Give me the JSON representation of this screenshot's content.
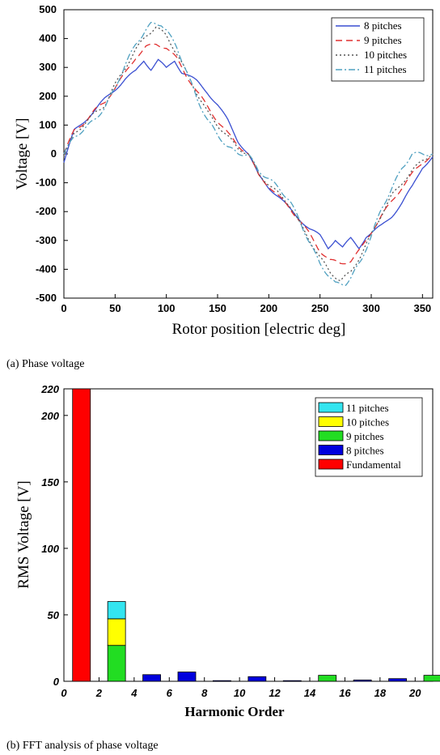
{
  "captions": {
    "a": "(a)  Phase  voltage",
    "b": "(b)  FFT  analysis  of  phase  voltage"
  },
  "chart_data": [
    {
      "type": "line",
      "xlabel": "Rotor position [electric deg]",
      "ylabel": "Voltage [V]",
      "xlim": [
        0,
        360
      ],
      "ylim": [
        -500,
        500
      ],
      "xticks": [
        "0",
        "50",
        "100",
        "150",
        "200",
        "250",
        "300",
        "350"
      ],
      "yticks": [
        "500",
        "400",
        "300",
        "200",
        "100",
        "0",
        "-100",
        "-200",
        "-300",
        "-400",
        "-500"
      ],
      "grid": false,
      "legend_position": "top-right",
      "series": [
        {
          "name": "8 pitches",
          "color": "#3a4fd1",
          "dash": "solid",
          "peak": 330,
          "x": [
            0,
            10,
            20,
            30,
            40,
            50,
            60,
            70,
            78,
            85,
            92,
            100,
            108,
            115,
            120,
            130,
            140,
            150,
            160,
            170,
            180,
            190,
            200,
            210,
            220,
            230,
            240,
            250,
            258,
            265,
            272,
            280,
            288,
            295,
            300,
            310,
            320,
            330,
            340,
            350,
            360
          ],
          "y": [
            -30,
            80,
            115,
            150,
            190,
            225,
            260,
            285,
            325,
            295,
            325,
            295,
            325,
            285,
            275,
            250,
            215,
            170,
            115,
            45,
            0,
            -75,
            -115,
            -150,
            -190,
            -225,
            -260,
            -285,
            -325,
            -295,
            -325,
            -295,
            -325,
            -285,
            -275,
            -250,
            -215,
            -170,
            -115,
            -45,
            -10
          ]
        },
        {
          "name": "9 pitches",
          "color": "#e03030",
          "dash": "8,5",
          "peak": 380,
          "x": [
            0,
            10,
            20,
            30,
            40,
            50,
            60,
            70,
            80,
            90,
            100,
            110,
            120,
            130,
            140,
            150,
            160,
            170,
            180,
            190,
            200,
            210,
            220,
            230,
            240,
            250,
            260,
            270,
            280,
            290,
            300,
            310,
            320,
            330,
            340,
            350,
            360
          ],
          "y": [
            0,
            80,
            110,
            150,
            180,
            230,
            280,
            335,
            370,
            380,
            370,
            330,
            270,
            215,
            165,
            115,
            70,
            30,
            0,
            -75,
            -110,
            -150,
            -185,
            -230,
            -280,
            -335,
            -370,
            -380,
            -370,
            -330,
            -270,
            -215,
            -165,
            -115,
            -70,
            -30,
            0
          ]
        },
        {
          "name": "10 pitches",
          "color": "#555555",
          "dash": "2,3",
          "peak": 440,
          "x": [
            0,
            10,
            20,
            30,
            40,
            50,
            60,
            70,
            80,
            90,
            100,
            110,
            120,
            130,
            140,
            150,
            160,
            170,
            180,
            190,
            200,
            210,
            220,
            230,
            240,
            250,
            260,
            270,
            280,
            290,
            300,
            310,
            320,
            330,
            340,
            350,
            360
          ],
          "y": [
            -10,
            70,
            105,
            140,
            170,
            240,
            300,
            360,
            410,
            440,
            410,
            350,
            280,
            210,
            145,
            100,
            60,
            20,
            0,
            -70,
            -105,
            -140,
            -175,
            -240,
            -300,
            -360,
            -410,
            -440,
            -410,
            -350,
            -280,
            -210,
            -145,
            -100,
            -60,
            -20,
            0
          ]
        },
        {
          "name": "11 pitches",
          "color": "#4fa0c0",
          "dash": "8,3,2,3",
          "peak": 460,
          "x": [
            0,
            10,
            20,
            30,
            40,
            50,
            60,
            70,
            80,
            85,
            95,
            100,
            110,
            120,
            130,
            140,
            150,
            160,
            170,
            180,
            190,
            200,
            210,
            220,
            230,
            240,
            250,
            260,
            265,
            275,
            280,
            290,
            300,
            310,
            320,
            330,
            340,
            350,
            360
          ],
          "y": [
            0,
            60,
            85,
            120,
            160,
            230,
            310,
            380,
            430,
            450,
            450,
            430,
            370,
            285,
            190,
            120,
            65,
            25,
            0,
            0,
            -60,
            -85,
            -120,
            -160,
            -230,
            -310,
            -380,
            -430,
            -450,
            -450,
            -430,
            -370,
            -285,
            -190,
            -120,
            -50,
            0,
            0,
            0
          ]
        }
      ]
    },
    {
      "type": "bar",
      "xlabel": "Harmonic Order",
      "ylabel": "RMS Voltage [V]",
      "xlim": [
        0,
        21
      ],
      "ylim": [
        0,
        220
      ],
      "xticks": [
        "0",
        "2",
        "4",
        "6",
        "8",
        "10",
        "12",
        "14",
        "16",
        "18",
        "20"
      ],
      "yticks": [
        "0",
        "50",
        "100",
        "150",
        "200",
        "220"
      ],
      "grid": false,
      "legend_position": "top-right",
      "stacked": true,
      "series": [
        {
          "name": "11 pitches",
          "color": "#33e5f0"
        },
        {
          "name": "10 pitches",
          "color": "#ffff00"
        },
        {
          "name": "9 pitches",
          "color": "#22dd22"
        },
        {
          "name": "8 pitches",
          "color": "#0000dd"
        },
        {
          "name": "Fundamental",
          "color": "#ff0000"
        }
      ],
      "bars": [
        {
          "order": 1,
          "segments": [
            {
              "series": "Fundamental",
              "value": 220
            }
          ]
        },
        {
          "order": 3,
          "segments": [
            {
              "series": "9 pitches",
              "value": 27
            },
            {
              "series": "10 pitches",
              "value": 20
            },
            {
              "series": "11 pitches",
              "value": 13
            }
          ]
        },
        {
          "order": 5,
          "segments": [
            {
              "series": "8 pitches",
              "value": 5
            }
          ]
        },
        {
          "order": 7,
          "segments": [
            {
              "series": "8 pitches",
              "value": 7
            }
          ]
        },
        {
          "order": 9,
          "segments": [
            {
              "series": "8 pitches",
              "value": 0.5
            }
          ]
        },
        {
          "order": 11,
          "segments": [
            {
              "series": "8 pitches",
              "value": 3.5
            }
          ]
        },
        {
          "order": 13,
          "segments": [
            {
              "series": "8 pitches",
              "value": 0.5
            }
          ]
        },
        {
          "order": 15,
          "segments": [
            {
              "series": "9 pitches",
              "value": 4.5
            }
          ]
        },
        {
          "order": 17,
          "segments": [
            {
              "series": "8 pitches",
              "value": 1
            }
          ]
        },
        {
          "order": 19,
          "segments": [
            {
              "series": "8 pitches",
              "value": 2
            }
          ]
        },
        {
          "order": 21,
          "segments": [
            {
              "series": "9 pitches",
              "value": 4.5
            }
          ]
        }
      ]
    }
  ]
}
